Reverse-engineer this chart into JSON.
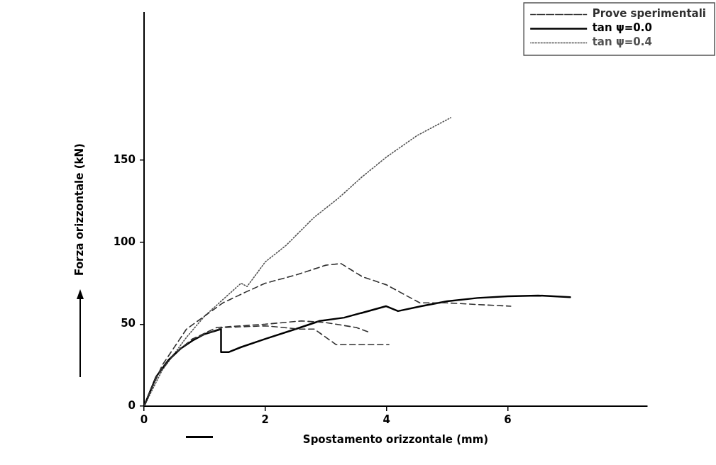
{
  "chart_data": {
    "type": "line",
    "xlabel": "Spostamento orizzontale (mm)",
    "ylabel": "Forza orizzontale (kN)",
    "xlim": [
      0,
      8.3
    ],
    "xticks": [
      0,
      2,
      4,
      6
    ],
    "ylim": [
      0,
      240
    ],
    "yticks": [
      0,
      50,
      100,
      150
    ],
    "grid": false,
    "legend": "top right",
    "marker": "none",
    "series": [
      {
        "name": "Prove sperimentali",
        "color": "#303030",
        "line_style": "dashed",
        "x": [
          0,
          0.3,
          0.7,
          1.0,
          1.3,
          1.7,
          2.0,
          2.5,
          3.0,
          3.25,
          3.6,
          4.0,
          4.55,
          5.0,
          5.5,
          6.05
        ],
        "values": [
          0,
          25,
          47,
          55,
          63,
          70,
          75,
          80,
          86,
          87,
          79,
          74,
          63,
          63,
          62,
          61
        ]
      },
      {
        "color": "#303030",
        "line_style": "dashed",
        "x": [
          0,
          0.2,
          0.5,
          0.8,
          1.2,
          2.0,
          2.6,
          3.0,
          3.5,
          3.72
        ],
        "values": [
          0,
          18,
          32,
          41,
          48,
          50,
          52,
          51,
          48,
          45
        ]
      },
      {
        "color": "#303030",
        "line_style": "dashed",
        "x": [
          0,
          0.2,
          0.5,
          0.8,
          1.3,
          2.0,
          2.58,
          2.81,
          3.17,
          4.04
        ],
        "values": [
          0,
          18,
          32,
          41,
          48,
          49,
          47,
          47,
          37.5,
          37.5
        ]
      },
      {
        "name": "tan ψ=0.0",
        "color": "#000000",
        "line_style": "solid",
        "x": [
          0,
          0.2,
          0.4,
          0.6,
          0.8,
          1.0,
          1.27,
          1.27,
          1.4,
          1.6,
          2.0,
          2.5,
          2.9,
          3.3,
          3.6,
          3.99,
          4.19,
          4.57,
          5.0,
          5.5,
          6.0,
          6.5,
          7.03
        ],
        "values": [
          0,
          18,
          28,
          35,
          40,
          44,
          47,
          33,
          33,
          36,
          41,
          47,
          52,
          54,
          57,
          61,
          58,
          61,
          64,
          66,
          67,
          67.5,
          66.5
        ]
      },
      {
        "name": "tan ψ=0.4",
        "color": "#505050",
        "line_style": "dotted",
        "x": [
          0,
          0.3,
          0.7,
          1.0,
          1.3,
          1.6,
          1.7,
          2.0,
          2.34,
          2.8,
          3.21,
          3.6,
          4.0,
          4.5,
          5.06
        ],
        "values": [
          0,
          22,
          42,
          55,
          65,
          75,
          73,
          88,
          98,
          115,
          127,
          140,
          152,
          165,
          176
        ]
      }
    ]
  }
}
